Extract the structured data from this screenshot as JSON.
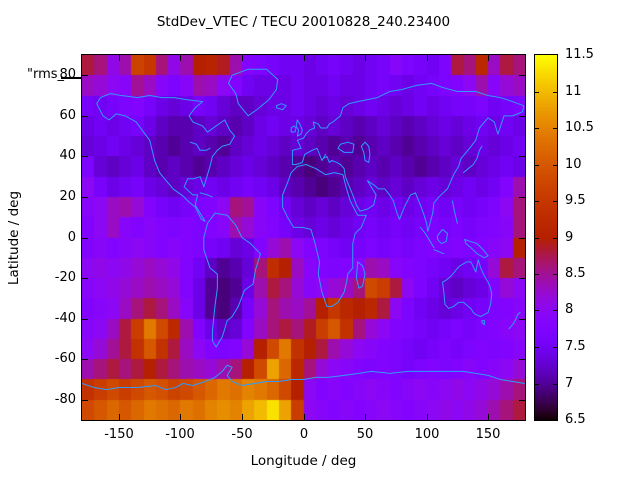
{
  "title": "StdDev_VTEC / TECU 20010828_240.23400",
  "key": {
    "label": "\"rms_"
  },
  "axes": {
    "x": {
      "label": "Longitude / deg",
      "range": [
        -180,
        180
      ],
      "ticks": [
        -150,
        -100,
        -50,
        0,
        50,
        100,
        150
      ]
    },
    "y": {
      "label": "Latitude / deg",
      "range": [
        -90,
        90
      ],
      "ticks": [
        80,
        60,
        40,
        20,
        0,
        -20,
        -40,
        -60,
        -80
      ]
    }
  },
  "colorbar": {
    "range": [
      6.5,
      11.5
    ],
    "ticks": [
      6.5,
      7,
      7.5,
      8,
      8.5,
      9,
      9.5,
      10,
      10.5,
      11,
      11.5
    ],
    "palette_name": "gnuplot pm3d (black-violet-purple-red-orange-yellow)",
    "palette_hex_stops": [
      "#000000",
      "#510096",
      "#7202f2",
      "#8c07f2",
      "#a11096",
      "#b42000",
      "#c63700",
      "#d55700",
      "#e48300",
      "#f2ba00",
      "#ffff00"
    ]
  },
  "map": {
    "coastline_color": "#2f9bff",
    "projection": "equirectangular world coastlines"
  },
  "chart_data": {
    "type": "heatmap",
    "title": "StdDev_VTEC / TECU 20010828_240.23400",
    "xlabel": "Longitude / deg",
    "ylabel": "Latitude / deg",
    "x_range": [
      -180,
      180
    ],
    "y_range": [
      -90,
      90
    ],
    "value_range": [
      6.5,
      11.5
    ],
    "cell_size_deg": 10,
    "lon_centers": [
      -175,
      -165,
      -155,
      -145,
      -135,
      -125,
      -115,
      -105,
      -95,
      -85,
      -75,
      -65,
      -55,
      -45,
      -35,
      -25,
      -15,
      -5,
      5,
      15,
      25,
      35,
      45,
      55,
      65,
      75,
      85,
      95,
      105,
      115,
      125,
      135,
      145,
      155,
      165,
      175
    ],
    "lat_centers": [
      85,
      75,
      65,
      55,
      45,
      35,
      25,
      15,
      5,
      -5,
      -15,
      -25,
      -35,
      -45,
      -55,
      -65,
      -75,
      -85
    ],
    "values_rows_north_to_south": [
      [
        8.8,
        8.6,
        8.1,
        8.4,
        9.7,
        9.5,
        8.6,
        8.1,
        8.4,
        9.0,
        9.1,
        8.9,
        8.4,
        7.8,
        7.7,
        7.6,
        7.5,
        7.5,
        7.4,
        7.5,
        7.6,
        7.5,
        7.4,
        7.5,
        7.6,
        7.9,
        7.7,
        7.6,
        7.5,
        7.7,
        8.8,
        8.6,
        9.2,
        8.3,
        8.8,
        8.6
      ],
      [
        8.3,
        8.2,
        8.0,
        7.9,
        8.5,
        8.3,
        7.9,
        7.7,
        7.9,
        8.4,
        8.3,
        8.0,
        7.8,
        7.5,
        7.4,
        7.4,
        7.4,
        7.5,
        7.4,
        7.4,
        7.5,
        7.4,
        7.4,
        7.5,
        7.6,
        7.5,
        7.4,
        7.5,
        7.6,
        7.7,
        7.8,
        8.0,
        8.4,
        7.9,
        8.2,
        8.3
      ],
      [
        7.6,
        7.5,
        7.6,
        7.7,
        7.8,
        7.6,
        7.4,
        7.3,
        7.4,
        7.6,
        7.5,
        7.3,
        7.2,
        7.2,
        7.3,
        7.4,
        7.4,
        7.5,
        7.4,
        7.3,
        7.4,
        7.3,
        7.4,
        7.5,
        7.4,
        7.3,
        7.4,
        7.5,
        7.4,
        7.5,
        7.6,
        7.6,
        7.7,
        7.5,
        7.6,
        7.7
      ],
      [
        7.4,
        7.5,
        7.4,
        7.5,
        7.6,
        7.4,
        7.2,
        7.1,
        7.1,
        7.2,
        7.3,
        7.2,
        7.1,
        7.2,
        7.4,
        7.5,
        7.4,
        7.4,
        7.3,
        7.2,
        7.3,
        7.2,
        7.1,
        7.2,
        7.3,
        7.2,
        7.1,
        7.2,
        7.3,
        7.4,
        7.3,
        7.4,
        7.5,
        7.4,
        7.5,
        7.4
      ],
      [
        7.3,
        7.4,
        7.5,
        7.4,
        7.3,
        7.2,
        7.1,
        7.0,
        7.1,
        7.2,
        7.1,
        7.0,
        7.2,
        7.3,
        7.4,
        7.3,
        7.2,
        7.3,
        7.2,
        7.1,
        7.0,
        7.1,
        7.0,
        7.1,
        7.2,
        7.1,
        7.0,
        7.1,
        7.2,
        7.3,
        7.2,
        7.3,
        7.4,
        7.3,
        7.4,
        7.5
      ],
      [
        7.7,
        7.3,
        7.2,
        7.3,
        7.4,
        7.2,
        7.1,
        7.2,
        7.1,
        7.0,
        7.1,
        7.2,
        7.3,
        7.4,
        7.3,
        7.2,
        7.1,
        7.0,
        6.9,
        7.0,
        7.1,
        7.0,
        7.1,
        7.2,
        7.1,
        7.2,
        7.1,
        7.0,
        7.1,
        7.2,
        7.3,
        7.2,
        7.3,
        7.4,
        7.5,
        7.4
      ],
      [
        8.0,
        7.6,
        7.4,
        7.5,
        7.6,
        7.4,
        7.3,
        7.2,
        7.3,
        7.4,
        7.5,
        7.4,
        7.5,
        7.6,
        7.5,
        7.4,
        7.2,
        7.1,
        7.0,
        6.9,
        7.0,
        7.1,
        7.2,
        7.3,
        7.2,
        7.3,
        7.2,
        7.3,
        7.4,
        7.3,
        7.4,
        7.5,
        7.4,
        7.5,
        7.8,
        8.4
      ],
      [
        7.9,
        8.0,
        8.3,
        8.4,
        8.2,
        7.8,
        7.6,
        7.5,
        7.6,
        7.7,
        7.8,
        8.0,
        8.6,
        8.5,
        7.9,
        7.7,
        7.5,
        7.3,
        7.2,
        7.3,
        7.2,
        7.3,
        7.4,
        7.5,
        7.4,
        7.5,
        7.4,
        7.5,
        7.6,
        7.5,
        7.6,
        7.5,
        7.6,
        7.7,
        8.0,
        8.6
      ],
      [
        7.8,
        8.0,
        8.3,
        7.9,
        7.8,
        7.9,
        7.8,
        7.7,
        7.8,
        7.7,
        7.8,
        7.9,
        8.4,
        8.2,
        7.9,
        7.8,
        7.6,
        7.4,
        7.3,
        7.4,
        7.3,
        7.4,
        7.5,
        7.6,
        7.5,
        7.6,
        7.5,
        7.6,
        7.7,
        7.6,
        7.7,
        7.6,
        7.7,
        7.8,
        7.9,
        8.6
      ],
      [
        7.8,
        7.9,
        7.8,
        7.9,
        8.0,
        7.9,
        7.8,
        7.9,
        7.8,
        7.7,
        7.6,
        7.5,
        7.3,
        7.4,
        7.8,
        8.2,
        8.4,
        8.0,
        7.8,
        7.7,
        7.6,
        7.5,
        7.6,
        7.7,
        7.6,
        7.7,
        7.6,
        7.7,
        7.8,
        7.7,
        7.8,
        7.7,
        7.8,
        7.9,
        8.0,
        9.0
      ],
      [
        8.0,
        8.1,
        8.0,
        8.1,
        8.2,
        8.3,
        8.2,
        8.1,
        7.8,
        7.5,
        7.2,
        7.0,
        7.1,
        7.3,
        8.6,
        9.3,
        9.0,
        8.3,
        7.9,
        7.8,
        7.7,
        7.8,
        7.9,
        8.4,
        8.3,
        7.9,
        7.8,
        7.7,
        7.6,
        7.5,
        7.4,
        7.5,
        7.6,
        8.2,
        8.8,
        8.6
      ],
      [
        7.9,
        8.0,
        8.1,
        8.2,
        8.3,
        8.4,
        8.3,
        8.2,
        7.8,
        7.4,
        7.0,
        6.9,
        7.0,
        7.4,
        8.4,
        8.8,
        8.6,
        8.2,
        7.9,
        8.0,
        8.2,
        8.3,
        8.6,
        9.8,
        9.6,
        8.8,
        8.0,
        7.7,
        7.5,
        7.3,
        7.2,
        7.3,
        7.4,
        7.8,
        8.2,
        8.0
      ],
      [
        7.8,
        7.9,
        8.0,
        8.3,
        8.6,
        8.8,
        8.6,
        8.3,
        7.9,
        7.4,
        7.0,
        6.9,
        7.1,
        7.6,
        8.2,
        8.6,
        8.4,
        8.3,
        8.5,
        9.0,
        9.5,
        9.2,
        9.0,
        9.2,
        8.8,
        8.0,
        7.7,
        7.5,
        7.4,
        7.3,
        7.4,
        7.5,
        7.6,
        7.7,
        7.8,
        7.9
      ],
      [
        7.9,
        8.0,
        8.3,
        8.8,
        9.6,
        10.4,
        9.8,
        9.2,
        8.4,
        7.8,
        7.4,
        7.2,
        7.3,
        7.8,
        8.3,
        8.6,
        8.8,
        8.6,
        8.9,
        9.6,
        10.0,
        9.4,
        8.6,
        8.2,
        8.0,
        7.8,
        7.7,
        7.6,
        7.5,
        7.6,
        7.7,
        7.6,
        7.7,
        7.8,
        7.9,
        8.0
      ],
      [
        8.0,
        8.2,
        8.5,
        8.8,
        9.4,
        10.0,
        9.4,
        8.8,
        8.3,
        8.0,
        7.8,
        7.7,
        7.8,
        8.2,
        9.0,
        9.8,
        10.4,
        9.4,
        9.0,
        8.8,
        8.4,
        8.2,
        8.0,
        7.9,
        7.8,
        7.7,
        7.6,
        7.5,
        7.6,
        7.7,
        7.6,
        7.7,
        7.8,
        7.7,
        7.8,
        7.9
      ],
      [
        8.4,
        8.6,
        8.8,
        8.6,
        8.8,
        9.0,
        8.8,
        8.6,
        8.4,
        8.3,
        8.2,
        8.4,
        8.6,
        9.0,
        9.8,
        10.8,
        10.2,
        9.2,
        8.6,
        8.2,
        8.0,
        7.9,
        7.8,
        7.7,
        7.8,
        7.7,
        7.6,
        7.7,
        7.8,
        7.7,
        7.8,
        7.9,
        7.8,
        7.9,
        8.0,
        8.2
      ],
      [
        9.4,
        9.6,
        9.8,
        9.6,
        9.8,
        10.0,
        9.9,
        9.7,
        9.8,
        10.0,
        10.2,
        10.4,
        10.3,
        10.5,
        10.4,
        10.2,
        9.8,
        9.0,
        8.0,
        7.8,
        7.9,
        7.8,
        7.9,
        8.0,
        7.9,
        7.8,
        7.9,
        8.0,
        7.9,
        8.0,
        8.1,
        8.0,
        8.1,
        8.2,
        8.4,
        8.6
      ],
      [
        9.8,
        10.0,
        10.2,
        10.0,
        10.2,
        10.4,
        10.3,
        10.2,
        10.4,
        10.3,
        10.5,
        10.6,
        10.5,
        10.8,
        11.0,
        11.3,
        10.8,
        9.6,
        8.0,
        7.9,
        7.8,
        7.9,
        7.8,
        7.9,
        8.0,
        7.9,
        7.8,
        7.9,
        8.0,
        8.1,
        8.0,
        8.1,
        8.2,
        8.4,
        8.6,
        8.8
      ]
    ],
    "overlay": "world coastlines drawn in light blue",
    "legend_position": "vertical colorbar at right",
    "grid": "off"
  }
}
